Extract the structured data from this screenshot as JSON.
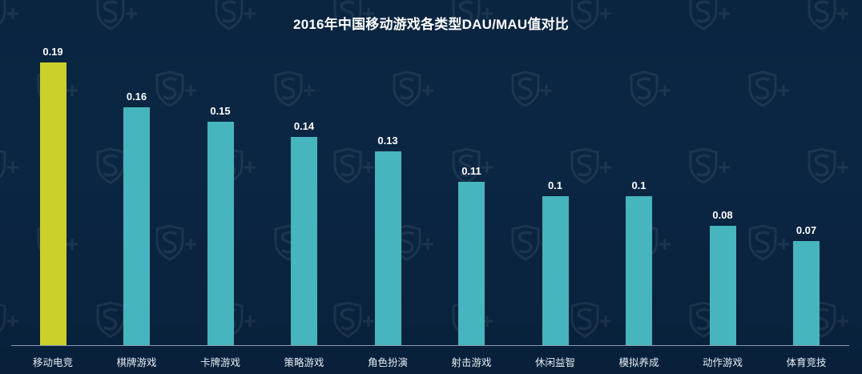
{
  "header": {
    "title": "2016年中国移动游戏各类型DAU/MAU值对比"
  },
  "colors": {
    "background": "#0a2540",
    "highlight_bar": "#cbd02a",
    "bar": "#46b5be",
    "axis": "#8a9aab",
    "text": "#ffffff"
  },
  "chart_data": {
    "type": "bar",
    "title": "2016年中国移动游戏各类型DAU/MAU值对比",
    "xlabel": "",
    "ylabel": "",
    "categories": [
      "移动电竞",
      "棋牌游戏",
      "卡牌游戏",
      "策略游戏",
      "角色扮演",
      "射击游戏",
      "休闲益智",
      "模拟养成",
      "动作游戏",
      "体育竞技"
    ],
    "values": [
      0.19,
      0.16,
      0.15,
      0.14,
      0.13,
      0.11,
      0.1,
      0.1,
      0.08,
      0.07
    ],
    "value_labels": [
      "0.19",
      "0.16",
      "0.15",
      "0.14",
      "0.13",
      "0.11",
      "0.1",
      "0.1",
      "0.08",
      "0.07"
    ],
    "highlight_index": 0,
    "ylim": [
      0,
      0.2
    ],
    "grid": false,
    "legend": "none",
    "data_labels": true
  }
}
